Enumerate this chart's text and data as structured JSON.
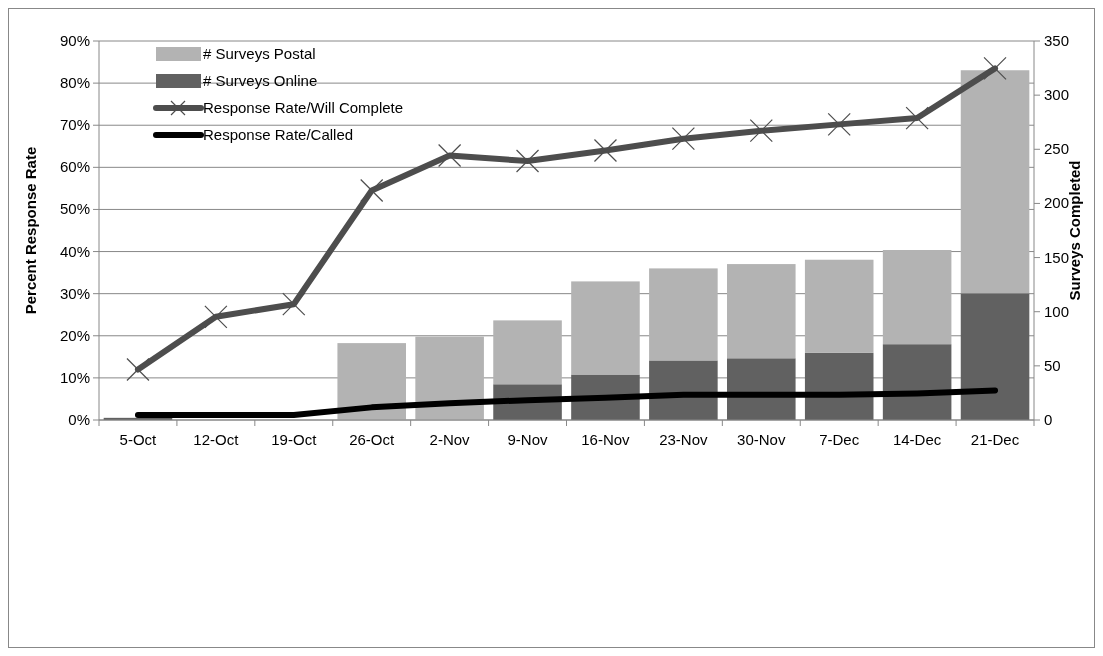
{
  "chart_data": {
    "type": "bar",
    "stacked": true,
    "ylabel": "Percent Response Rate",
    "y2label": "Surveys Completed",
    "categories": [
      "5-Oct",
      "12-Oct",
      "19-Oct",
      "26-Oct",
      "2-Nov",
      "9-Nov",
      "16-Nov",
      "23-Nov",
      "30-Nov",
      "7-Dec",
      "14-Dec",
      "21-Dec"
    ],
    "series": [
      {
        "name": "#  Surveys Online",
        "axis": "y2",
        "color": "#616161",
        "values": [
          2,
          0,
          0,
          0,
          0,
          33,
          42,
          55,
          57,
          62,
          70,
          117
        ]
      },
      {
        "name": "#  Surveys Postal",
        "axis": "y2",
        "color": "#b3b3b3",
        "values": [
          0,
          0,
          0,
          71,
          77,
          59,
          86,
          85,
          87,
          86,
          87,
          206
        ]
      },
      {
        "name": "Response Rate/Will Complete",
        "type": "line",
        "color": "#4d4d4d",
        "marker": "cross",
        "values": [
          12,
          24.5,
          27.5,
          54.5,
          62.8,
          61.5,
          64,
          66.8,
          68.7,
          70.2,
          71.7,
          83.5
        ]
      },
      {
        "name": "Response Rate/Called",
        "type": "line",
        "color": "#000000",
        "marker": "none",
        "values": [
          1.2,
          1.2,
          1.2,
          3,
          4,
          4.7,
          5.3,
          6,
          6,
          6,
          6.3,
          7
        ]
      }
    ],
    "ylim": [
      0,
      90
    ],
    "yticks": [
      {
        "value": 0,
        "label": "0%"
      },
      {
        "value": 10,
        "label": "10%"
      },
      {
        "value": 20,
        "label": "20%"
      },
      {
        "value": 30,
        "label": "30%"
      },
      {
        "value": 40,
        "label": "40%"
      },
      {
        "value": 50,
        "label": "50%"
      },
      {
        "value": 60,
        "label": "60%"
      },
      {
        "value": 70,
        "label": "70%"
      },
      {
        "value": 80,
        "label": "80%"
      },
      {
        "value": 90,
        "label": "90%"
      }
    ],
    "y2lim": [
      0,
      350
    ],
    "y2ticks": [
      0,
      50,
      100,
      150,
      200,
      250,
      300,
      350
    ],
    "grid": "y",
    "legend": "top left"
  }
}
